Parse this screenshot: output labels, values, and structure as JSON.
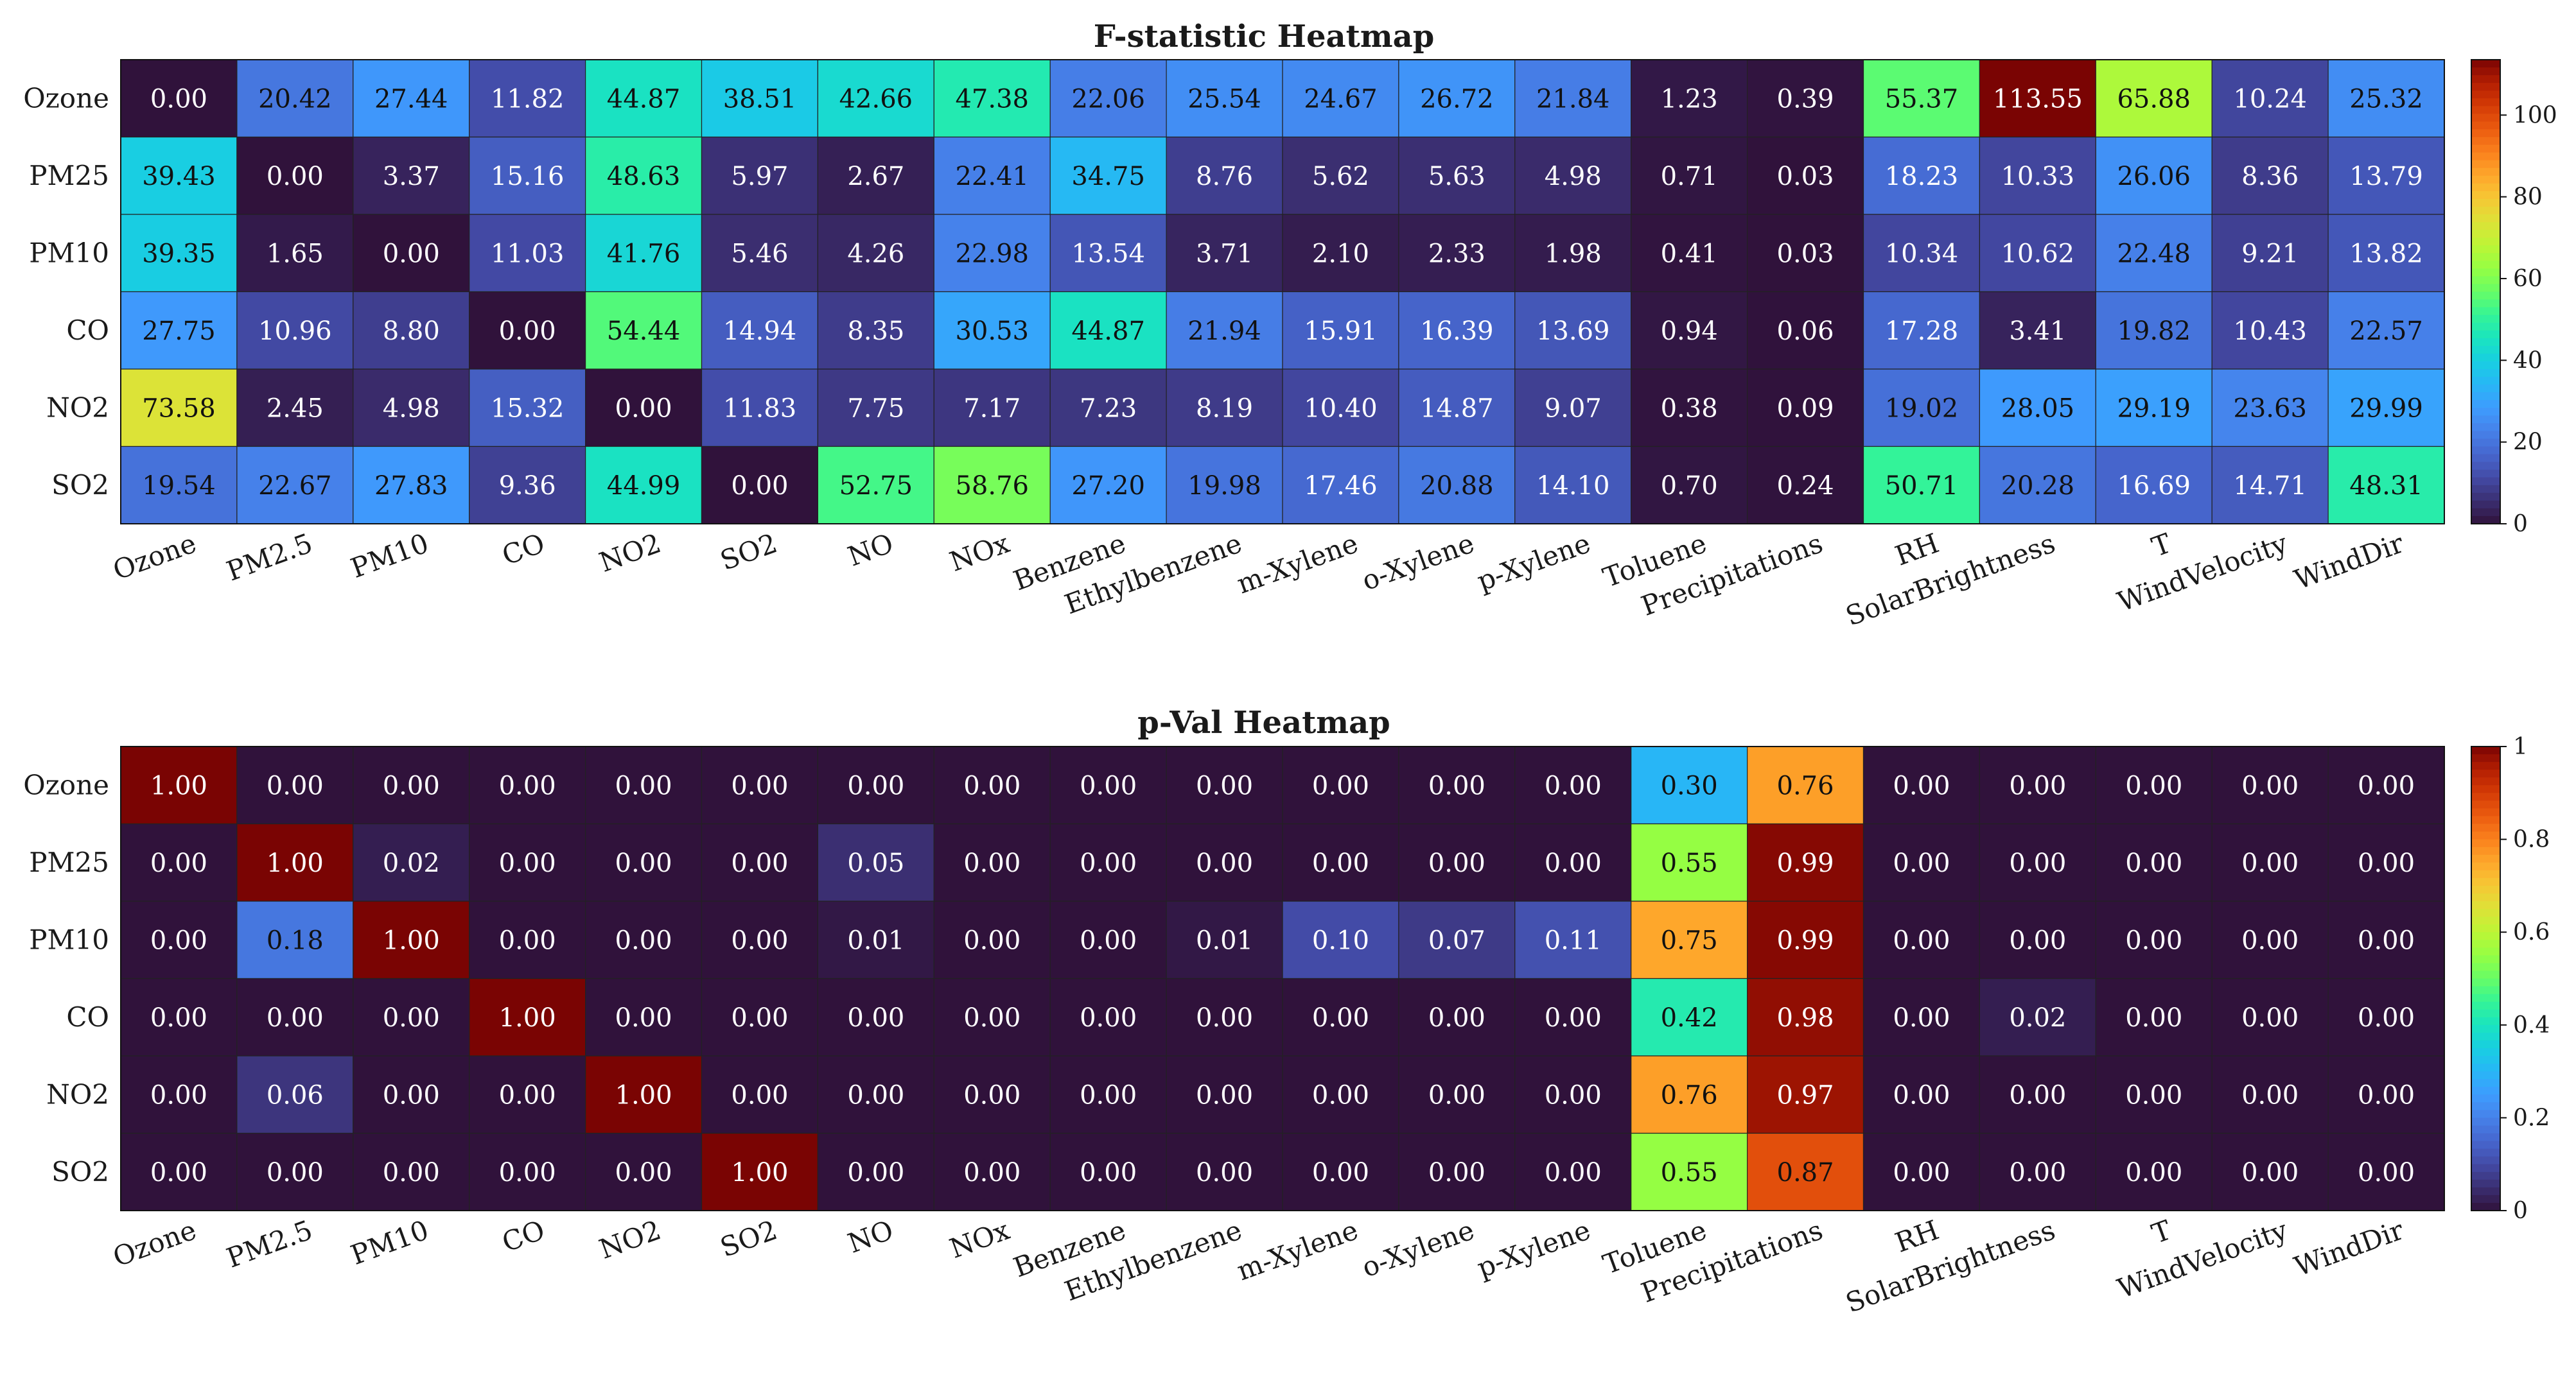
{
  "chart_data": [
    {
      "type": "heatmap",
      "title": "F-statistic Heatmap",
      "rows": [
        "Ozone",
        "PM25",
        "PM10",
        "CO",
        "NO2",
        "SO2"
      ],
      "columns": [
        "Ozone",
        "PM2.5",
        "PM10",
        "CO",
        "NO2",
        "SO2",
        "NO",
        "NOx",
        "Benzene",
        "Ethylbenzene",
        "m-Xylene",
        "o-Xylene",
        "p-Xylene",
        "Toluene",
        "Precipitations",
        "RH",
        "SolarBrightness",
        "T",
        "WindVelocity",
        "WindDir"
      ],
      "values": [
        [
          0.0,
          20.42,
          27.44,
          11.82,
          44.87,
          38.51,
          42.66,
          47.38,
          22.06,
          25.54,
          24.67,
          26.72,
          21.84,
          1.23,
          0.39,
          55.37,
          113.55,
          65.88,
          10.24,
          25.32
        ],
        [
          39.43,
          0.0,
          3.37,
          15.16,
          48.63,
          5.97,
          2.67,
          22.41,
          34.75,
          8.76,
          5.62,
          5.63,
          4.98,
          0.71,
          0.03,
          18.23,
          10.33,
          26.06,
          8.36,
          13.79
        ],
        [
          39.35,
          1.65,
          0.0,
          11.03,
          41.76,
          5.46,
          4.26,
          22.98,
          13.54,
          3.71,
          2.1,
          2.33,
          1.98,
          0.41,
          0.03,
          10.34,
          10.62,
          22.48,
          9.21,
          13.82
        ],
        [
          27.75,
          10.96,
          8.8,
          0.0,
          54.44,
          14.94,
          8.35,
          30.53,
          44.87,
          21.94,
          15.91,
          16.39,
          13.69,
          0.94,
          0.06,
          17.28,
          3.41,
          19.82,
          10.43,
          22.57
        ],
        [
          73.58,
          2.45,
          4.98,
          15.32,
          0.0,
          11.83,
          7.75,
          7.17,
          7.23,
          8.19,
          10.4,
          14.87,
          9.07,
          0.38,
          0.09,
          19.02,
          28.05,
          29.19,
          23.63,
          29.99
        ],
        [
          19.54,
          22.67,
          27.83,
          9.36,
          44.99,
          0.0,
          52.75,
          58.76,
          27.2,
          19.98,
          17.46,
          20.88,
          14.1,
          0.7,
          0.24,
          50.71,
          20.28,
          16.69,
          14.71,
          48.31
        ]
      ],
      "value_format": "2 decimals",
      "colormap": "turbo",
      "color_range": [
        0,
        113.55
      ],
      "colorbar_ticks": [
        0,
        20,
        40,
        60,
        80,
        100
      ]
    },
    {
      "type": "heatmap",
      "title": "p-Val Heatmap",
      "rows": [
        "Ozone",
        "PM25",
        "PM10",
        "CO",
        "NO2",
        "SO2"
      ],
      "columns": [
        "Ozone",
        "PM2.5",
        "PM10",
        "CO",
        "NO2",
        "SO2",
        "NO",
        "NOx",
        "Benzene",
        "Ethylbenzene",
        "m-Xylene",
        "o-Xylene",
        "p-Xylene",
        "Toluene",
        "Precipitations",
        "RH",
        "SolarBrightness",
        "T",
        "WindVelocity",
        "WindDir"
      ],
      "values": [
        [
          1.0,
          0.0,
          0.0,
          0.0,
          0.0,
          0.0,
          0.0,
          0.0,
          0.0,
          0.0,
          0.0,
          0.0,
          0.0,
          0.3,
          0.76,
          0.0,
          0.0,
          0.0,
          0.0,
          0.0
        ],
        [
          0.0,
          1.0,
          0.02,
          0.0,
          0.0,
          0.0,
          0.05,
          0.0,
          0.0,
          0.0,
          0.0,
          0.0,
          0.0,
          0.55,
          0.99,
          0.0,
          0.0,
          0.0,
          0.0,
          0.0
        ],
        [
          0.0,
          0.18,
          1.0,
          0.0,
          0.0,
          0.0,
          0.01,
          0.0,
          0.0,
          0.01,
          0.1,
          0.07,
          0.11,
          0.75,
          0.99,
          0.0,
          0.0,
          0.0,
          0.0,
          0.0
        ],
        [
          0.0,
          0.0,
          0.0,
          1.0,
          0.0,
          0.0,
          0.0,
          0.0,
          0.0,
          0.0,
          0.0,
          0.0,
          0.0,
          0.42,
          0.98,
          0.0,
          0.02,
          0.0,
          0.0,
          0.0
        ],
        [
          0.0,
          0.06,
          0.0,
          0.0,
          1.0,
          0.0,
          0.0,
          0.0,
          0.0,
          0.0,
          0.0,
          0.0,
          0.0,
          0.76,
          0.97,
          0.0,
          0.0,
          0.0,
          0.0,
          0.0
        ],
        [
          0.0,
          0.0,
          0.0,
          0.0,
          0.0,
          1.0,
          0.0,
          0.0,
          0.0,
          0.0,
          0.0,
          0.0,
          0.0,
          0.55,
          0.87,
          0.0,
          0.0,
          0.0,
          0.0,
          0.0
        ]
      ],
      "value_format": "2 decimals",
      "colormap": "turbo",
      "color_range": [
        0,
        1
      ],
      "colorbar_ticks": [
        0,
        0.2,
        0.4,
        0.6,
        0.8,
        1
      ]
    }
  ]
}
